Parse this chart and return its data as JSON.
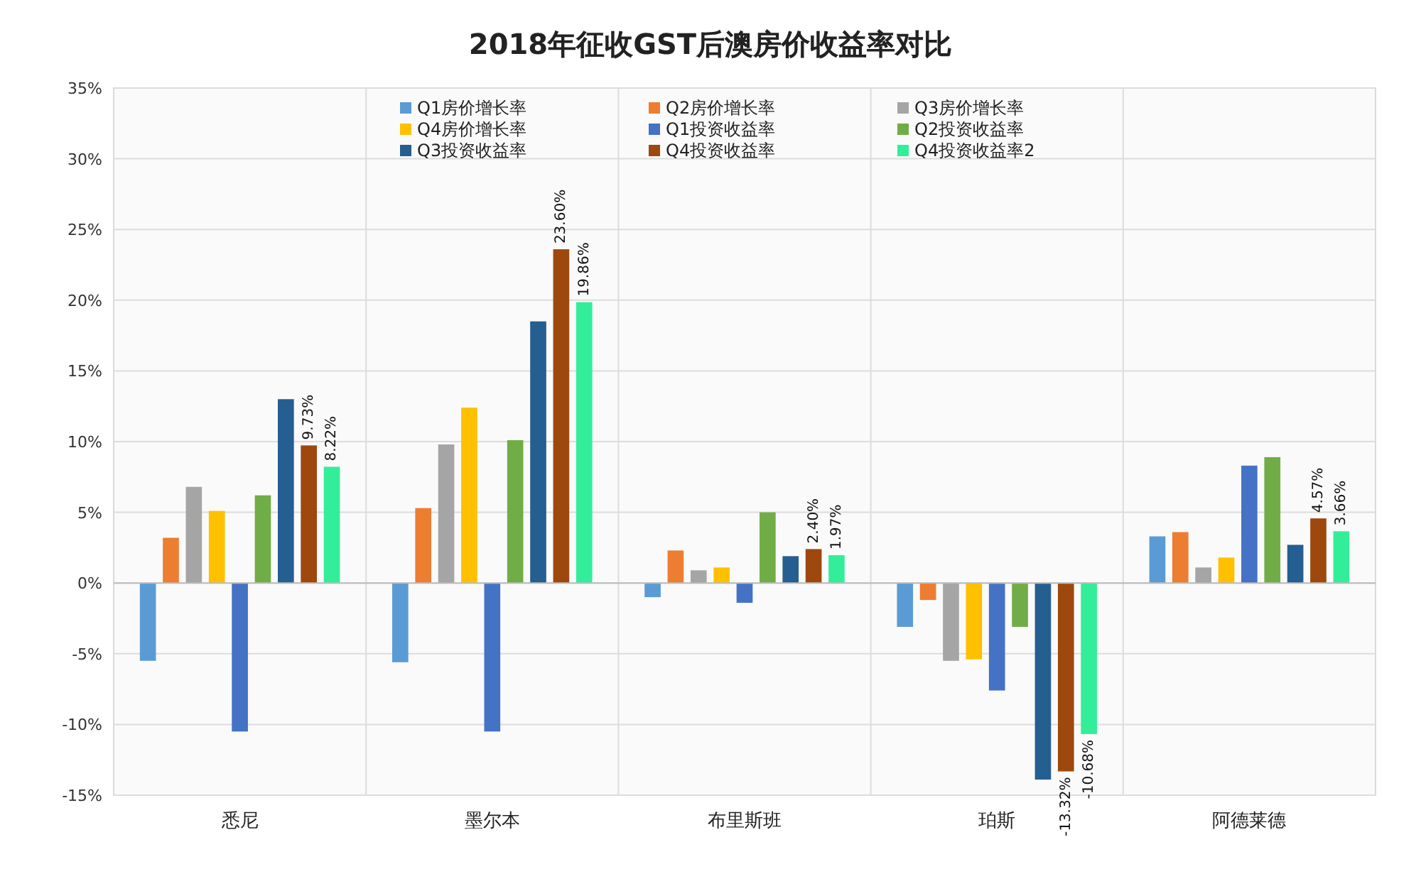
{
  "chart_data": {
    "type": "bar",
    "title": "2018年征收GST后澳房价收益率对比",
    "categories": [
      "悉尼",
      "墨尔本",
      "布里斯班",
      "珀斯",
      "阿德莱德"
    ],
    "series": [
      {
        "name": "Q1房价增长率",
        "color": "#5b9bd5",
        "values": [
          -5.5,
          -5.6,
          -1.0,
          -3.1,
          3.3
        ]
      },
      {
        "name": "Q2房价增长率",
        "color": "#ed7d31",
        "values": [
          3.2,
          5.3,
          2.3,
          -1.2,
          3.6
        ]
      },
      {
        "name": "Q3房价增长率",
        "color": "#a5a5a5",
        "values": [
          6.8,
          9.8,
          0.9,
          -5.5,
          1.1
        ]
      },
      {
        "name": "Q4房价增长率",
        "color": "#ffc000",
        "values": [
          5.1,
          12.4,
          1.1,
          -5.4,
          1.8
        ]
      },
      {
        "name": "Q1投资收益率",
        "color": "#4472c4",
        "values": [
          -10.5,
          -10.5,
          -1.4,
          -7.6,
          8.3
        ]
      },
      {
        "name": "Q2投资收益率",
        "color": "#70ad47",
        "values": [
          6.2,
          10.1,
          5.0,
          -3.1,
          8.9
        ]
      },
      {
        "name": "Q3投资收益率",
        "color": "#255e91",
        "values": [
          13.0,
          18.5,
          1.9,
          -13.9,
          2.7
        ]
      },
      {
        "name": "Q4投资收益率",
        "color": "#9e480e",
        "values": [
          9.73,
          23.6,
          2.4,
          -13.32,
          4.57
        ],
        "value_labels": [
          "9.73%",
          "23.60%",
          "2.40%",
          "-13.32%",
          "4.57%"
        ]
      },
      {
        "name": "Q4投资收益率2",
        "color": "#33ee99",
        "values": [
          8.22,
          19.86,
          1.97,
          -10.68,
          3.66
        ],
        "value_labels": [
          "8.22%",
          "19.86%",
          "1.97%",
          "-10.68%",
          "3.66%"
        ]
      }
    ],
    "ylim": [
      -15,
      35
    ],
    "yticks": [
      {
        "value": -15,
        "label": "-15%"
      },
      {
        "value": -10,
        "label": "-10%"
      },
      {
        "value": -5,
        "label": "-5%"
      },
      {
        "value": 0,
        "label": "0%"
      },
      {
        "value": 5,
        "label": "5%"
      },
      {
        "value": 10,
        "label": "10%"
      },
      {
        "value": 15,
        "label": "15%"
      },
      {
        "value": 20,
        "label": "20%"
      },
      {
        "value": 25,
        "label": "25%"
      },
      {
        "value": 30,
        "label": "30%"
      },
      {
        "value": 35,
        "label": "35%"
      }
    ],
    "grid": true,
    "legend": "top"
  }
}
